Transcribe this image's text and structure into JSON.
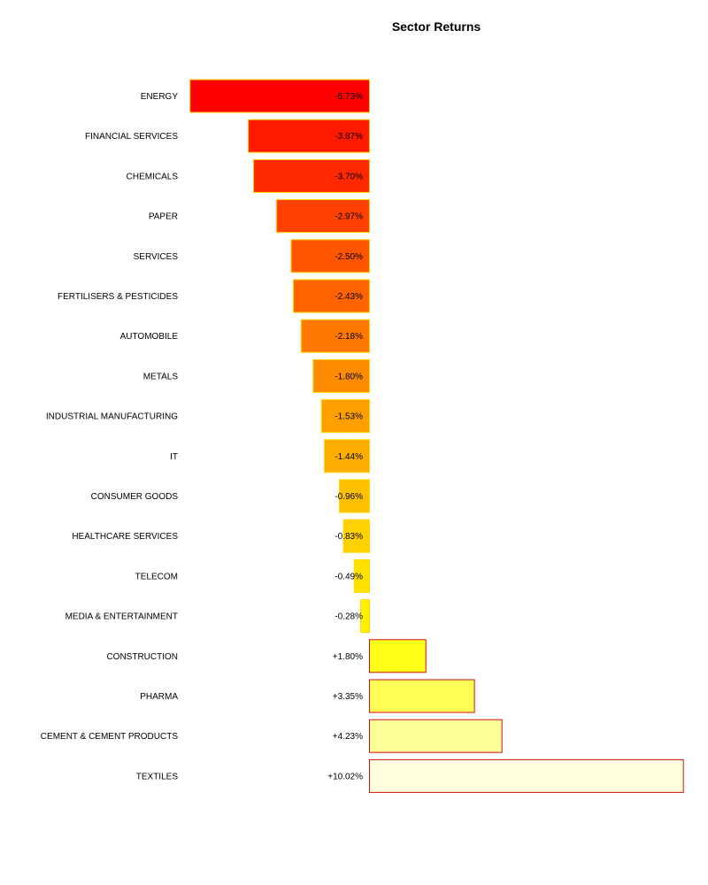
{
  "chart_data": {
    "type": "bar",
    "orientation": "horizontal",
    "title": "Sector Returns",
    "xlabel": "",
    "ylabel": "",
    "grid": false,
    "categories": [
      "ENERGY",
      "FINANCIAL SERVICES",
      "CHEMICALS",
      "PAPER",
      "SERVICES",
      "FERTILISERS & PESTICIDES",
      "AUTOMOBILE",
      "METALS",
      "INDUSTRIAL MANUFACTURING",
      "IT",
      "CONSUMER GOODS",
      "HEALTHCARE SERVICES",
      "TELECOM",
      "MEDIA & ENTERTAINMENT",
      "CONSTRUCTION",
      "PHARMA",
      "CEMENT & CEMENT PRODUCTS",
      "TEXTILES"
    ],
    "values": [
      -5.73,
      -3.87,
      -3.7,
      -2.97,
      -2.5,
      -2.43,
      -2.18,
      -1.8,
      -1.53,
      -1.44,
      -0.96,
      -0.83,
      -0.49,
      -0.28,
      1.8,
      3.35,
      4.23,
      10.02
    ],
    "value_labels": [
      "-5.73%",
      "-3.87%",
      "-3.70%",
      "-2.97%",
      "-2.50%",
      "-2.43%",
      "-2.18%",
      "-1.80%",
      "-1.53%",
      "-1.44%",
      "-0.96%",
      "-0.83%",
      "-0.49%",
      "-0.28%",
      "+1.80%",
      "+3.35%",
      "+4.23%",
      "+10.02%"
    ],
    "colors": [
      "#ff0000",
      "#ff1a00",
      "#ff2800",
      "#ff4000",
      "#ff5500",
      "#ff6400",
      "#ff7800",
      "#ff8b00",
      "#ff9f00",
      "#ffad00",
      "#ffc000",
      "#ffd100",
      "#ffe100",
      "#fff000",
      "#ffff1a",
      "#ffff55",
      "#ffff99",
      "#ffffdd"
    ],
    "negative_border_color": "#ffd700",
    "positive_border_color": "#d01010"
  }
}
